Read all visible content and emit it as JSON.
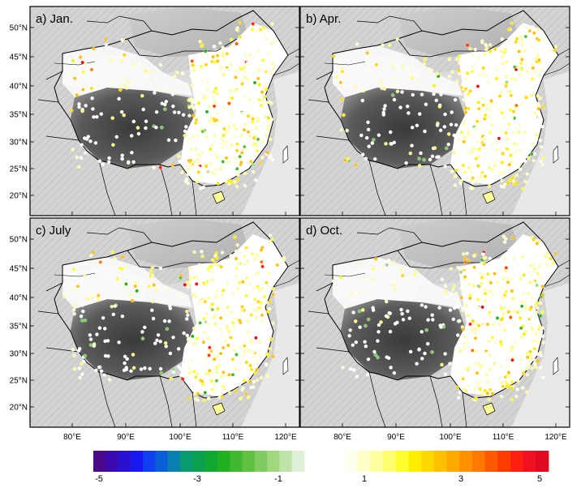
{
  "panels": [
    {
      "id": "a",
      "label": "a) Jan.",
      "col": 0,
      "row": 0,
      "seed": 11,
      "pos": 0.28,
      "neg": 0.05,
      "hot": 0.03
    },
    {
      "id": "b",
      "label": "b) Apr.",
      "col": 1,
      "row": 0,
      "seed": 23,
      "pos": 0.3,
      "neg": 0.03,
      "hot": 0.02
    },
    {
      "id": "c",
      "label": "c) July",
      "col": 0,
      "row": 1,
      "seed": 37,
      "pos": 0.36,
      "neg": 0.03,
      "hot": 0.03
    },
    {
      "id": "d",
      "label": "d) Oct.",
      "col": 1,
      "row": 1,
      "seed": 51,
      "pos": 0.3,
      "neg": 0.03,
      "hot": 0.02
    }
  ],
  "lat_ticks": [
    "50°N",
    "45°N",
    "40°N",
    "35°N",
    "30°N",
    "25°N",
    "20°N"
  ],
  "lon_ticks": [
    "80°E",
    "90°E",
    "100°E",
    "110°E",
    "120°E"
  ],
  "colorbar": {
    "labels": [
      "-5",
      "-3",
      "-1",
      "1",
      "3",
      "5"
    ],
    "colors_negative": [
      "#4a0a8a",
      "#3a0ab0",
      "#2a10d0",
      "#1818f0",
      "#1040f0",
      "#0a60d8",
      "#0a80b0",
      "#0a9a70",
      "#0aa050",
      "#10a830",
      "#20b020",
      "#40b830",
      "#60c040",
      "#80cc60",
      "#a0d880",
      "#c0e4a8",
      "#e0f0d8"
    ],
    "colors_positive": [
      "#fffff0",
      "#ffffc8",
      "#ffffa0",
      "#ffff70",
      "#ffff30",
      "#ffee00",
      "#ffd800",
      "#ffc000",
      "#ffa800",
      "#ff9000",
      "#ff7800",
      "#ff5a00",
      "#ff3c00",
      "#ff2010",
      "#f01020",
      "#e00a20"
    ]
  }
}
